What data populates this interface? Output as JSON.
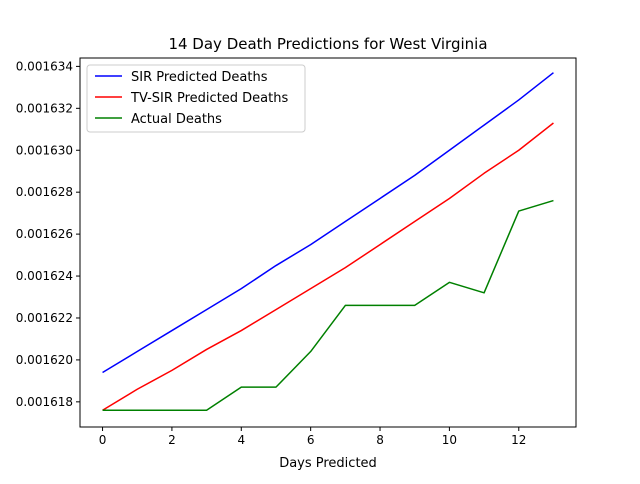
{
  "chart_data": {
    "type": "line",
    "title": "14 Day Death Predictions for West Virginia",
    "xlabel": "Days Predicted",
    "ylabel": "",
    "xlim": [
      -0.65,
      13.65
    ],
    "ylim": [
      0.0016168,
      0.0016344
    ],
    "x_ticks": [
      0,
      2,
      4,
      6,
      8,
      10,
      12
    ],
    "y_ticks": [
      0.001618,
      0.00162,
      0.001622,
      0.001624,
      0.001626,
      0.001628,
      0.00163,
      0.001632,
      0.001634
    ],
    "y_tick_labels": [
      "0.001618",
      "0.001620",
      "0.001622",
      "0.001624",
      "0.001626",
      "0.001628",
      "0.001630",
      "0.001632",
      "0.001634"
    ],
    "grid": false,
    "legend_position": "top-left",
    "x": [
      0,
      1,
      2,
      3,
      4,
      5,
      6,
      7,
      8,
      9,
      10,
      11,
      12,
      13
    ],
    "series": [
      {
        "name": "SIR Predicted Deaths",
        "color": "#0000ff",
        "values": [
          0.0016194,
          0.0016204,
          0.0016214,
          0.0016224,
          0.0016234,
          0.0016245,
          0.0016255,
          0.0016266,
          0.0016277,
          0.0016288,
          0.00163,
          0.0016312,
          0.0016324,
          0.0016337
        ]
      },
      {
        "name": "TV-SIR Predicted Deaths",
        "color": "#ff0000",
        "values": [
          0.0016176,
          0.0016186,
          0.0016195,
          0.0016205,
          0.0016214,
          0.0016224,
          0.0016234,
          0.0016244,
          0.0016255,
          0.0016266,
          0.0016277,
          0.0016289,
          0.00163,
          0.0016313
        ]
      },
      {
        "name": "Actual Deaths",
        "color": "#008000",
        "values": [
          0.0016176,
          0.0016176,
          0.0016176,
          0.0016176,
          0.0016187,
          0.0016187,
          0.0016204,
          0.0016226,
          0.0016226,
          0.0016226,
          0.0016237,
          0.0016232,
          0.0016271,
          0.0016276
        ]
      }
    ]
  }
}
